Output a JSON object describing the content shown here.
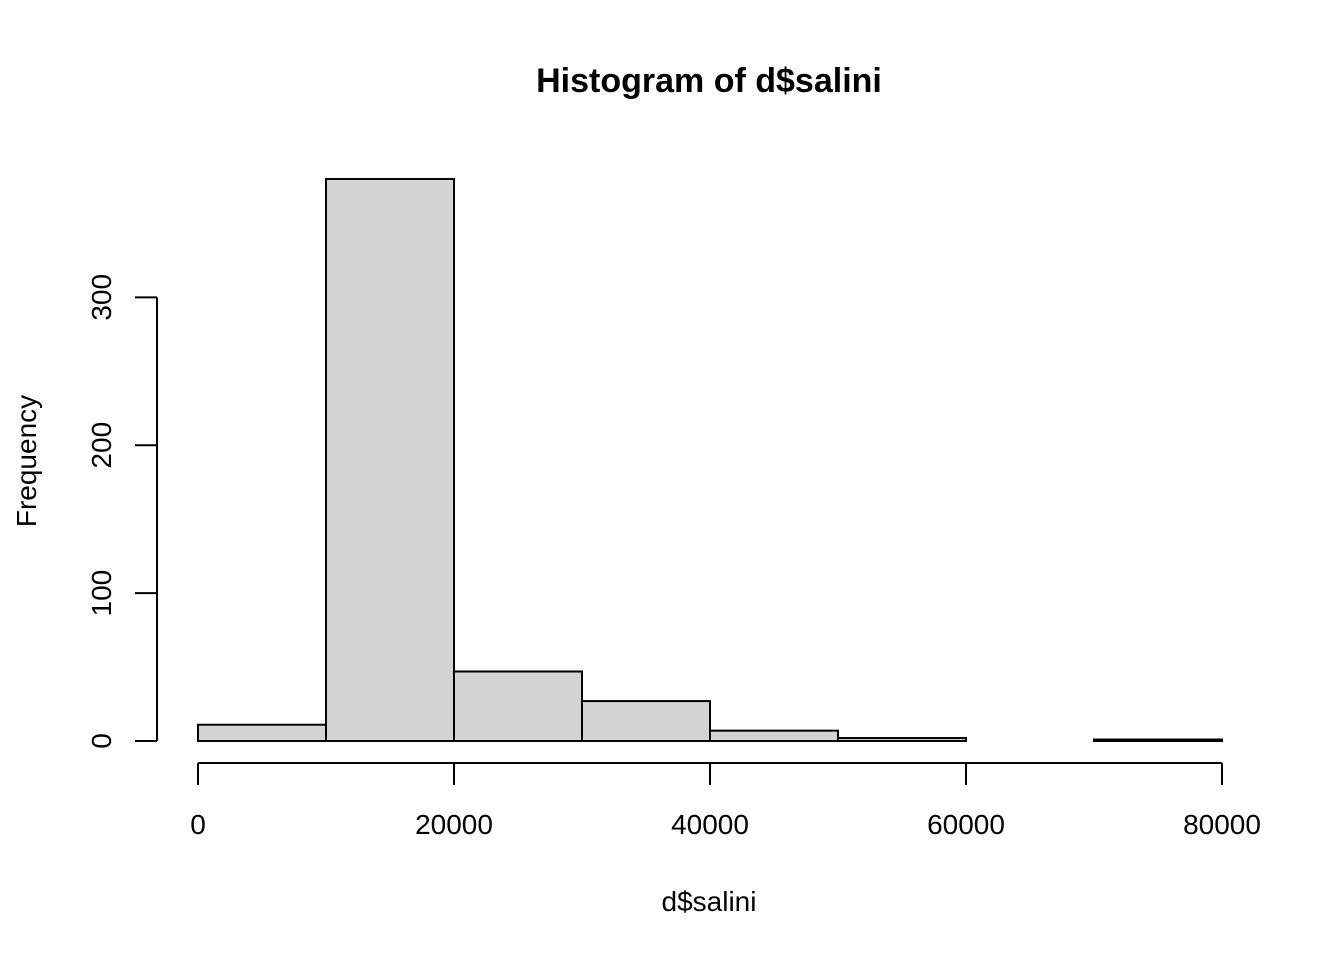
{
  "chart_data": {
    "type": "bar",
    "title": "Histogram of d$salini",
    "xlabel": "d$salini",
    "ylabel": "Frequency",
    "bins": [
      {
        "start": 0,
        "end": 10000,
        "count": 11
      },
      {
        "start": 10000,
        "end": 20000,
        "count": 380
      },
      {
        "start": 20000,
        "end": 30000,
        "count": 47
      },
      {
        "start": 30000,
        "end": 40000,
        "count": 27
      },
      {
        "start": 40000,
        "end": 50000,
        "count": 7
      },
      {
        "start": 50000,
        "end": 60000,
        "count": 2
      },
      {
        "start": 60000,
        "end": 70000,
        "count": 0
      },
      {
        "start": 70000,
        "end": 80000,
        "count": 1
      }
    ],
    "xlim": [
      0,
      80000
    ],
    "ylim": [
      0,
      380
    ],
    "x_ticks": [
      "0",
      "20000",
      "40000",
      "60000",
      "80000"
    ],
    "y_ticks": [
      "0",
      "100",
      "200",
      "300"
    ],
    "bar_color": "#d3d3d3",
    "grid": false
  }
}
